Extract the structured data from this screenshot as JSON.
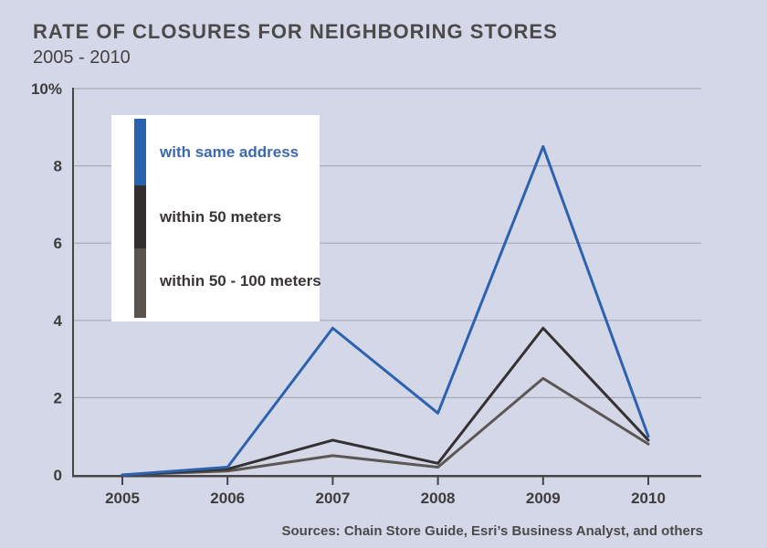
{
  "page": {
    "title": "RATE OF CLOSURES FOR NEIGHBORING STORES",
    "subtitle": "2005 - 2010",
    "source": "Sources: Chain Store Guide, Esri’s Business Analyst, and others"
  },
  "colors": {
    "background": "#d4d7e8",
    "gridline": "#a7a9b2",
    "axis": "#474445",
    "tick_text": "#3e3c3d",
    "title_text": "#4b494a"
  },
  "chart_data": {
    "type": "line",
    "title": "RATE OF CLOSURES FOR NEIGHBORING STORES",
    "subtitle": "2005 - 2010",
    "x": [
      2005,
      2006,
      2007,
      2008,
      2009,
      2010
    ],
    "series": [
      {
        "name": "with same address",
        "color": "#2c62ae",
        "values": [
          0,
          0.2,
          3.8,
          1.6,
          8.5,
          1.0
        ]
      },
      {
        "name": "within 50 meters",
        "color": "#353132",
        "values": [
          0,
          0.15,
          0.9,
          0.3,
          3.8,
          0.9
        ]
      },
      {
        "name": "within 50 - 100 meters",
        "color": "#5c5654",
        "values": [
          0,
          0.1,
          0.5,
          0.2,
          2.5,
          0.8
        ]
      }
    ],
    "ylim": [
      0,
      10
    ],
    "yticks": [
      {
        "value": 0,
        "label": "0"
      },
      {
        "value": 2,
        "label": "2"
      },
      {
        "value": 4,
        "label": "4"
      },
      {
        "value": 6,
        "label": "6"
      },
      {
        "value": 8,
        "label": "8"
      },
      {
        "value": 10,
        "label": "10%"
      }
    ],
    "grid": true,
    "legend_position": "upper-left",
    "xlabel": "",
    "ylabel": "",
    "source": "Sources: Chain Store Guide, Esri’s Business Analyst, and others"
  },
  "legend": {
    "items": [
      {
        "label": "with same address",
        "swatch": "#2764b0",
        "text_color": "#3b68ae"
      },
      {
        "label": "within 50 meters",
        "swatch": "#332f2e",
        "text_color": "#393536"
      },
      {
        "label": "within 50 - 100 meters",
        "swatch": "#5a5350",
        "text_color": "#393536"
      }
    ]
  }
}
